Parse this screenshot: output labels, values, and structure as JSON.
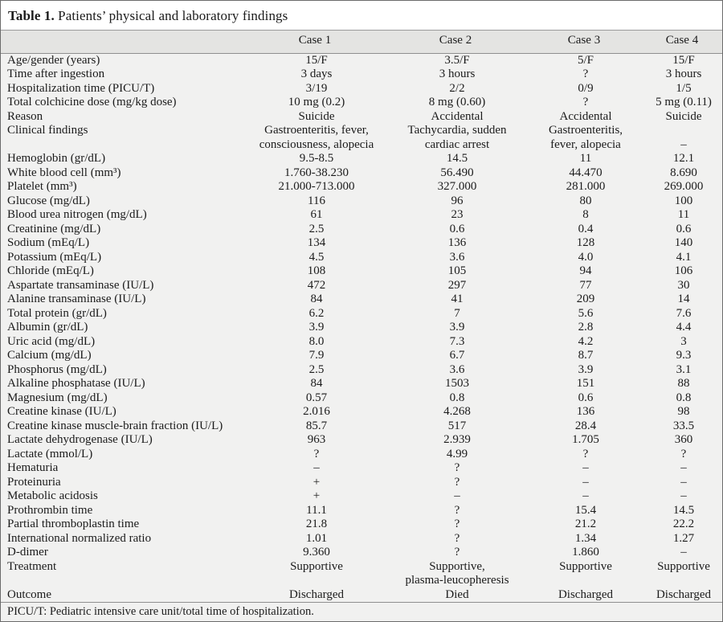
{
  "title": {
    "label": "Table 1.",
    "text": " Patients’ physical and laboratory findings"
  },
  "table": {
    "columns": [
      "",
      "Case 1",
      "Case 2",
      "Case 3",
      "Case 4"
    ],
    "rows": [
      {
        "label": "Age/gender (years)",
        "values": [
          "15/F",
          "3.5/F",
          "5/F",
          "15/F"
        ]
      },
      {
        "label": "Time after ingestion",
        "values": [
          "3 days",
          "3 hours",
          "?",
          "3 hours"
        ]
      },
      {
        "label": "Hospitalization time (PICU/T)",
        "values": [
          "3/19",
          "2/2",
          "0/9",
          "1/5"
        ]
      },
      {
        "label": "Total colchicine dose (mg/kg dose)",
        "values": [
          "10 mg (0.2)",
          "8 mg (0.60)",
          "?",
          "5 mg (0.11)"
        ]
      },
      {
        "label": "Reason",
        "values": [
          "Suicide",
          "Accidental",
          "Accidental",
          "Suicide"
        ]
      },
      {
        "label": "Clinical findings",
        "values": [
          "Gastroenteritis, fever,\nconsciousness, alopecia",
          "Tachycardia, sudden\ncardiac arrest",
          "Gastroenteritis,\nfever, alopecia",
          "\n–"
        ]
      },
      {
        "label": "Hemoglobin (gr/dL)",
        "values": [
          "9.5-8.5",
          "14.5",
          "11",
          "12.1"
        ]
      },
      {
        "label": "White blood cell (mm³)",
        "values": [
          "1.760-38.230",
          "56.490",
          "44.470",
          "8.690"
        ]
      },
      {
        "label": "Platelet (mm³)",
        "values": [
          "21.000-713.000",
          "327.000",
          "281.000",
          "269.000"
        ]
      },
      {
        "label": "Glucose (mg/dL)",
        "values": [
          "116",
          "96",
          "80",
          "100"
        ]
      },
      {
        "label": "Blood urea nitrogen (mg/dL)",
        "values": [
          "61",
          "23",
          "8",
          "11"
        ]
      },
      {
        "label": "Creatinine (mg/dL)",
        "values": [
          "2.5",
          "0.6",
          "0.4",
          "0.6"
        ]
      },
      {
        "label": "Sodium (mEq/L)",
        "values": [
          "134",
          "136",
          "128",
          "140"
        ]
      },
      {
        "label": "Potassium (mEq/L)",
        "values": [
          "4.5",
          "3.6",
          "4.0",
          "4.1"
        ]
      },
      {
        "label": "Chloride (mEq/L)",
        "values": [
          "108",
          "105",
          "94",
          "106"
        ]
      },
      {
        "label": "Aspartate transaminase (IU/L)",
        "values": [
          "472",
          "297",
          "77",
          "30"
        ]
      },
      {
        "label": "Alanine transaminase (IU/L)",
        "values": [
          "84",
          "41",
          "209",
          "14"
        ]
      },
      {
        "label": "Total protein (gr/dL)",
        "values": [
          "6.2",
          "7",
          "5.6",
          "7.6"
        ]
      },
      {
        "label": "Albumin (gr/dL)",
        "values": [
          "3.9",
          "3.9",
          "2.8",
          "4.4"
        ]
      },
      {
        "label": "Uric acid (mg/dL)",
        "values": [
          "8.0",
          "7.3",
          "4.2",
          "3"
        ]
      },
      {
        "label": "Calcium (mg/dL)",
        "values": [
          "7.9",
          "6.7",
          "8.7",
          "9.3"
        ]
      },
      {
        "label": "Phosphorus (mg/dL)",
        "values": [
          "2.5",
          "3.6",
          "3.9",
          "3.1"
        ]
      },
      {
        "label": "Alkaline phosphatase (IU/L)",
        "values": [
          "84",
          "1503",
          "151",
          "88"
        ]
      },
      {
        "label": "Magnesium (mg/dL)",
        "values": [
          "0.57",
          "0.8",
          "0.6",
          "0.8"
        ]
      },
      {
        "label": "Creatine kinase (IU/L)",
        "values": [
          "2.016",
          "4.268",
          "136",
          "98"
        ]
      },
      {
        "label": "Creatine kinase muscle-brain fraction (IU/L)",
        "values": [
          "85.7",
          "517",
          "28.4",
          "33.5"
        ]
      },
      {
        "label": "Lactate dehydrogenase (IU/L)",
        "values": [
          "963",
          "2.939",
          "1.705",
          "360"
        ]
      },
      {
        "label": "Lactate (mmol/L)",
        "values": [
          "?",
          "4.99",
          "?",
          "?"
        ]
      },
      {
        "label": "Hematuria",
        "values": [
          "–",
          "?",
          "–",
          "–"
        ]
      },
      {
        "label": "Proteinuria",
        "values": [
          "+",
          "?",
          "–",
          "–"
        ]
      },
      {
        "label": "Metabolic acidosis",
        "values": [
          "+",
          "–",
          "–",
          "–"
        ]
      },
      {
        "label": "Prothrombin time",
        "values": [
          "11.1",
          "?",
          "15.4",
          "14.5"
        ]
      },
      {
        "label": "Partial thromboplastin time",
        "values": [
          "21.8",
          "?",
          "21.2",
          "22.2"
        ]
      },
      {
        "label": "International normalized ratio",
        "values": [
          "1.01",
          "?",
          "1.34",
          "1.27"
        ]
      },
      {
        "label": "D-dimer",
        "values": [
          "9.360",
          "?",
          "1.860",
          "–"
        ]
      },
      {
        "label": "Treatment",
        "values": [
          "Supportive",
          "Supportive,\nplasma-leucopheresis",
          "Supportive",
          "Supportive"
        ]
      },
      {
        "label": "Outcome",
        "values": [
          "Discharged",
          "Died",
          "Discharged",
          "Discharged"
        ]
      }
    ]
  },
  "footnote": "PICU/T: Pediatric intensive care unit/total time of hospitalization.",
  "colors": {
    "table_background": "#f1f1f0",
    "header_background": "#e4e4e2",
    "rule": "#8f8f8f",
    "outer_border": "#6b6b6b",
    "text": "#1b1b1b"
  }
}
